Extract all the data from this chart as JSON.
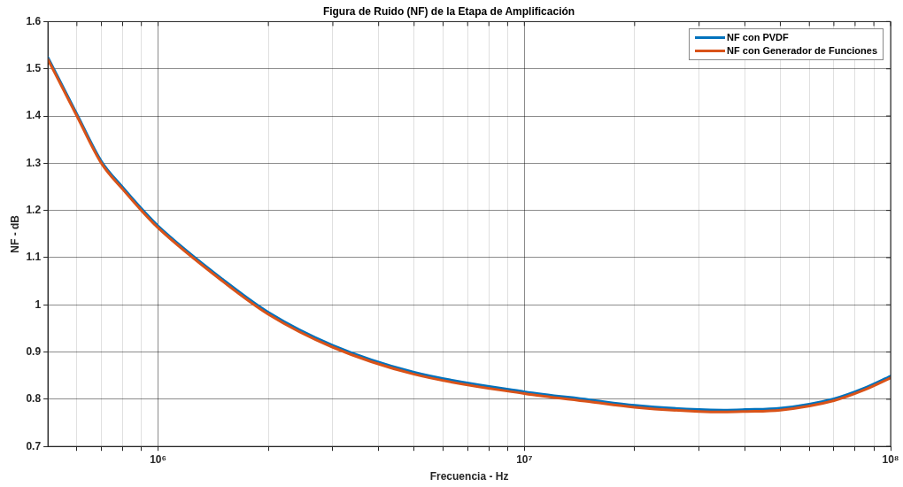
{
  "chart_data": {
    "type": "line",
    "title": "Figura de Ruido (NF) de la Etapa de Amplificación",
    "xlabel": "Frecuencia - Hz",
    "ylabel": "NF - dB",
    "x": [
      500000,
      600000,
      700000,
      800000,
      900000,
      1000000,
      1500000,
      2000000,
      3000000,
      5000000,
      10000000,
      15000000,
      20000000,
      30000000,
      35000000,
      40000000,
      50000000,
      70000000,
      85000000,
      100000000
    ],
    "series": [
      {
        "name": "NF con PVDF",
        "color": "#0072bd",
        "values": [
          1.524,
          1.404,
          1.304,
          1.249,
          1.204,
          1.167,
          1.054,
          0.984,
          0.914,
          0.857,
          0.816,
          0.799,
          0.787,
          0.778,
          0.777,
          0.778,
          0.781,
          0.801,
          0.824,
          0.849
        ]
      },
      {
        "name": "NF con Generador de Funciones",
        "color": "#d95319",
        "values": [
          1.52,
          1.4,
          1.3,
          1.245,
          1.2,
          1.163,
          1.05,
          0.98,
          0.91,
          0.853,
          0.812,
          0.795,
          0.783,
          0.774,
          0.773,
          0.774,
          0.777,
          0.797,
          0.82,
          0.845
        ]
      }
    ],
    "log": "x",
    "xlim": [
      500000,
      100000000
    ],
    "xticks": [
      {
        "value": 600000,
        "label": null
      },
      {
        "value": 700000,
        "label": null
      },
      {
        "value": 800000,
        "label": null
      },
      {
        "value": 900000,
        "label": null
      },
      {
        "value": 1000000,
        "label": "10⁶"
      },
      {
        "value": 2000000,
        "label": null
      },
      {
        "value": 3000000,
        "label": null
      },
      {
        "value": 4000000,
        "label": null
      },
      {
        "value": 5000000,
        "label": null
      },
      {
        "value": 6000000,
        "label": null
      },
      {
        "value": 7000000,
        "label": null
      },
      {
        "value": 8000000,
        "label": null
      },
      {
        "value": 9000000,
        "label": null
      },
      {
        "value": 10000000,
        "label": "10⁷"
      },
      {
        "value": 20000000,
        "label": null
      },
      {
        "value": 30000000,
        "label": null
      },
      {
        "value": 40000000,
        "label": null
      },
      {
        "value": 50000000,
        "label": null
      },
      {
        "value": 60000000,
        "label": null
      },
      {
        "value": 70000000,
        "label": null
      },
      {
        "value": 80000000,
        "label": null
      },
      {
        "value": 90000000,
        "label": null
      },
      {
        "value": 100000000,
        "label": "10⁸"
      }
    ],
    "ylim": [
      0.7,
      1.6
    ],
    "yticks": [
      0.7,
      0.8,
      0.9,
      1,
      1.1,
      1.2,
      1.3,
      1.4,
      1.5,
      1.6
    ],
    "grid": true,
    "legend": "top right",
    "marker": "none",
    "line_style": "solid"
  }
}
